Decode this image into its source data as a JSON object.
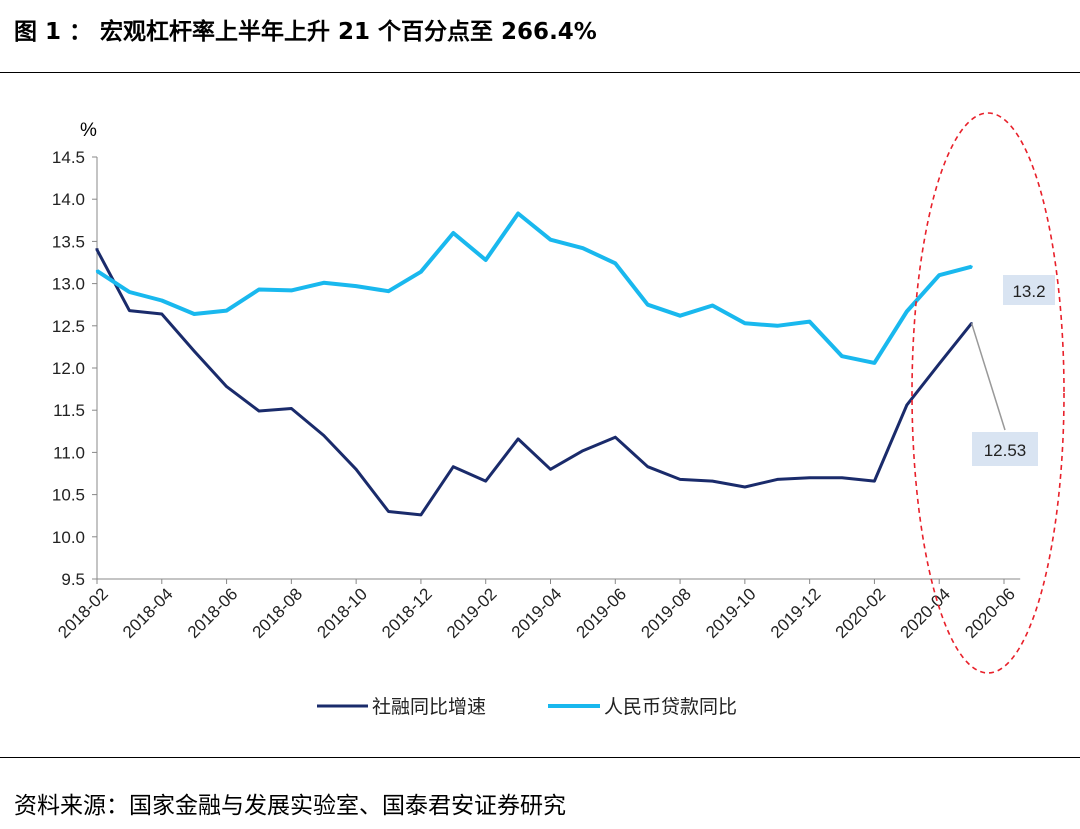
{
  "header": {
    "title": "图 1 ： 宏观杠杆率上半年上升 21 个百分点至 266.4%"
  },
  "footer": {
    "source": "资料来源：国家金融与发展实验室、国泰君安证券研究"
  },
  "colors": {
    "social_financing": "#1a2b6b",
    "rmb_loans": "#19b8ee",
    "highlight_ellipse": "#e8202a",
    "label_box": "#d9e4f2"
  },
  "chart_data": {
    "type": "line",
    "ylabel": "%",
    "ylim": [
      9.5,
      14.5
    ],
    "yticks": [
      "9.5",
      "10.0",
      "10.5",
      "11.0",
      "11.5",
      "12.0",
      "12.5",
      "13.0",
      "13.5",
      "14.0",
      "14.5"
    ],
    "x": [
      "2018-02",
      "2018-03",
      "2018-04",
      "2018-05",
      "2018-06",
      "2018-07",
      "2018-08",
      "2018-09",
      "2018-10",
      "2018-11",
      "2018-12",
      "2019-01",
      "2019-02",
      "2019-03",
      "2019-04",
      "2019-05",
      "2019-06",
      "2019-07",
      "2019-08",
      "2019-09",
      "2019-10",
      "2019-11",
      "2019-12",
      "2020-01",
      "2020-02",
      "2020-03",
      "2020-04",
      "2020-05",
      "2020-06"
    ],
    "xtick_labels": [
      "2018-02",
      "2018-04",
      "2018-06",
      "2018-08",
      "2018-10",
      "2018-12",
      "2019-02",
      "2019-04",
      "2019-06",
      "2019-08",
      "2019-10",
      "2019-12",
      "2020-02",
      "2020-04",
      "2020-06"
    ],
    "grid": false,
    "legend": "bottom",
    "series": [
      {
        "name": "社融同比增速",
        "values": [
          13.4,
          12.68,
          12.64,
          12.2,
          11.78,
          11.49,
          11.52,
          11.2,
          10.8,
          10.3,
          10.26,
          10.83,
          10.66,
          11.16,
          10.8,
          11.02,
          11.18,
          10.83,
          10.68,
          10.66,
          10.59,
          10.68,
          10.7,
          10.7,
          10.66,
          11.56,
          12.05,
          12.53,
          null
        ],
        "first_value": 13.42,
        "end_label": "12.53"
      },
      {
        "name": "人民币贷款同比",
        "values": [
          13.15,
          12.9,
          12.8,
          12.64,
          12.68,
          12.93,
          12.92,
          13.01,
          12.97,
          12.91,
          13.14,
          13.6,
          13.28,
          13.83,
          13.52,
          13.42,
          13.24,
          12.75,
          12.62,
          12.74,
          12.53,
          12.5,
          12.55,
          12.14,
          12.06,
          12.67,
          13.1,
          13.2,
          null
        ],
        "end_label": "13.2"
      }
    ],
    "annotations": [
      "13.2",
      "12.53"
    ]
  }
}
